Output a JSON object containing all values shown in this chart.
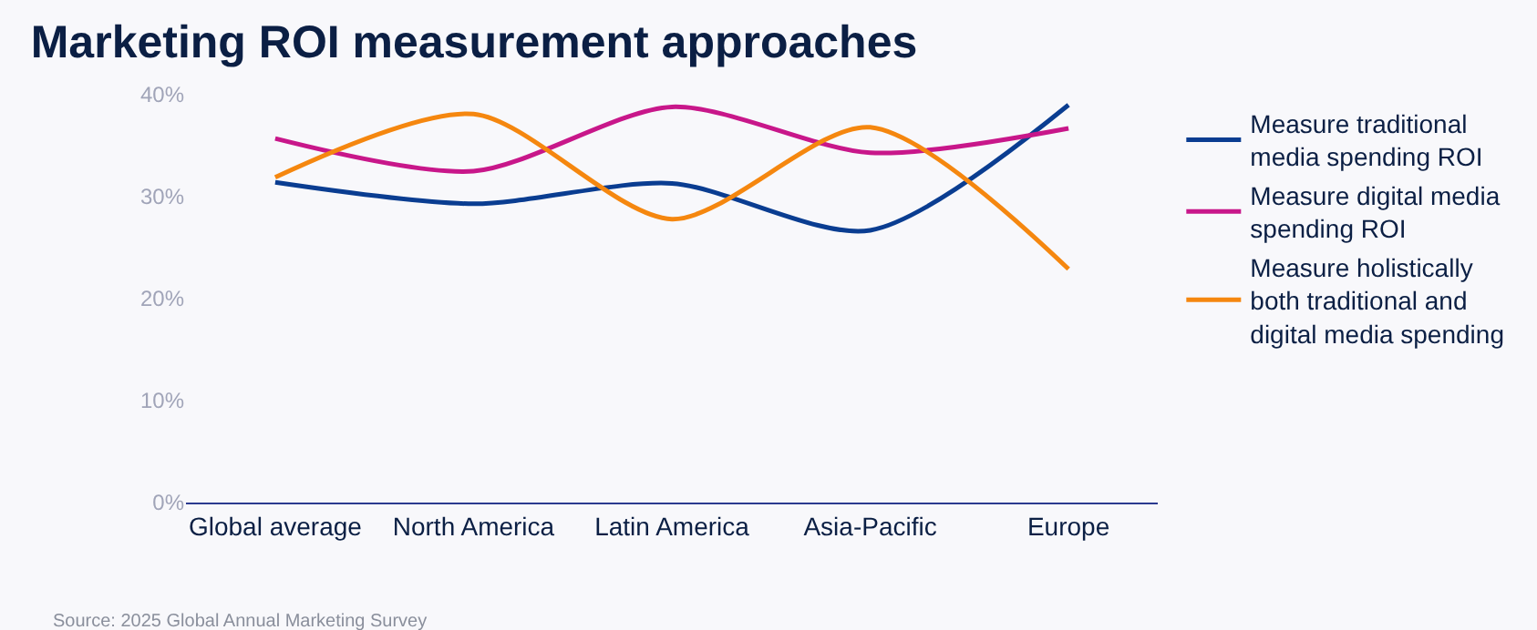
{
  "chart_data": {
    "type": "line",
    "title": "Marketing ROI measurement approaches",
    "categories": [
      "Global average",
      "North America",
      "Latin America",
      "Asia-Pacific",
      "Europe"
    ],
    "series": [
      {
        "name": "Measure traditional media spending ROI",
        "color": "#0a3d91",
        "values": [
          31.4,
          29.3,
          31.3,
          26.7,
          39
        ]
      },
      {
        "name": "Measure digital media spending ROI",
        "color": "#c8178a",
        "values": [
          35.7,
          32.5,
          38.8,
          34.3,
          36.7
        ]
      },
      {
        "name": "Measure holistically both traditional and digital media spending",
        "color": "#f5870f",
        "values": [
          31.9,
          38.1,
          27.8,
          36.8,
          22.9
        ]
      }
    ],
    "ylim": [
      0,
      40
    ],
    "yticks": [
      {
        "value": 0,
        "label": "0%"
      },
      {
        "value": 10,
        "label": "10%"
      },
      {
        "value": 20,
        "label": "20%"
      },
      {
        "value": 30,
        "label": "30%"
      },
      {
        "value": 40,
        "label": "40%"
      }
    ],
    "grid": false,
    "legend": "top right",
    "marker": "none",
    "annotations": [
      "Source: 2025 Global Annual Marketing Survey"
    ]
  }
}
